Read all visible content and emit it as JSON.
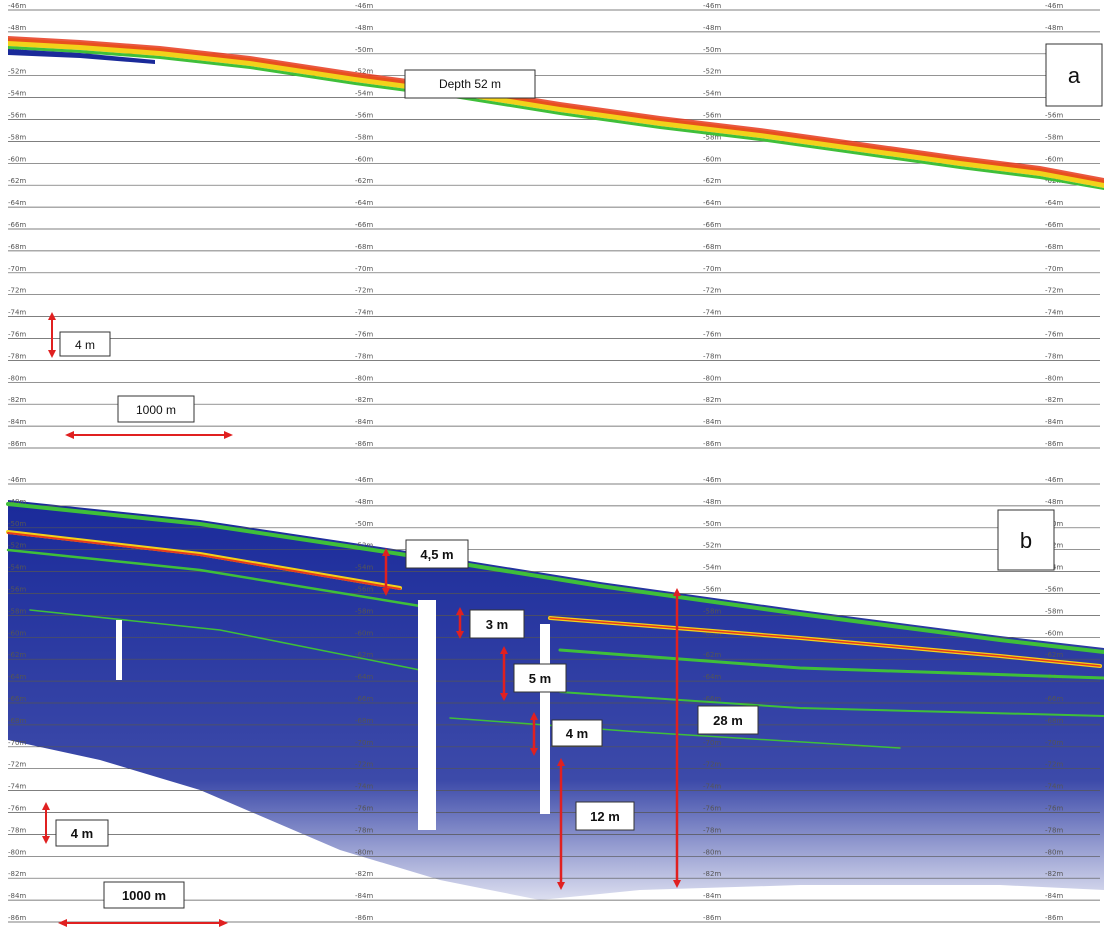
{
  "depth_ticks": [
    "-46m",
    "-48m",
    "-50m",
    "-52m",
    "-54m",
    "-56m",
    "-58m",
    "-60m",
    "-62m",
    "-64m",
    "-66m",
    "-68m",
    "-70m",
    "-72m",
    "-74m",
    "-76m",
    "-78m",
    "-80m",
    "-82m",
    "-84m",
    "-86m"
  ],
  "panel_a": {
    "letter": "a",
    "depth_callout": "Depth  52 m",
    "vertical_scale": "4 m",
    "horizontal_scale": "1000 m"
  },
  "panel_b": {
    "letter": "b",
    "vertical_scale": "4 m",
    "horizontal_scale": "1000 m",
    "thicknesses": [
      "4,5 m",
      "3 m",
      "5 m",
      "4 m",
      "12 m",
      "28 m"
    ]
  },
  "colors": {
    "grid": "#555555",
    "arrow": "#e02020",
    "echo_strong": "#e63a1e",
    "echo_mid": "#f2d21a",
    "echo_low": "#3fbf3a",
    "echo_base": "#1a2a9a"
  }
}
